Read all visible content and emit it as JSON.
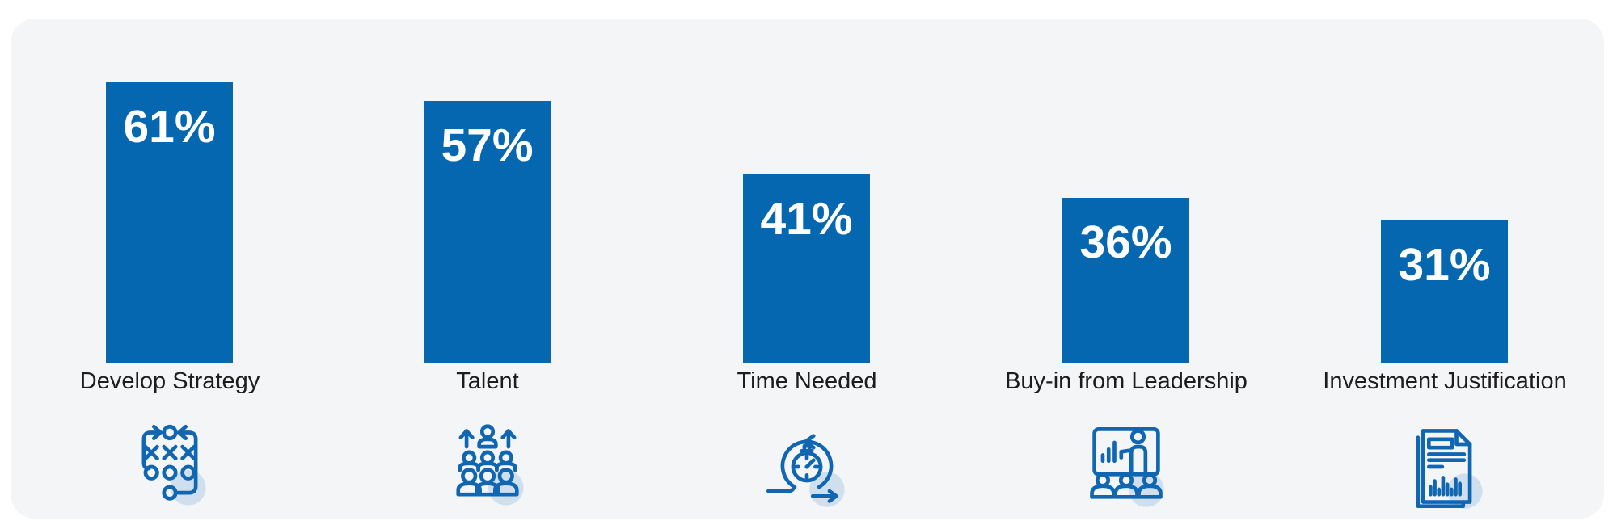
{
  "chart_data": {
    "type": "bar",
    "categories": [
      "Develop Strategy",
      "Talent",
      "Time Needed",
      "Buy-in from Leadership",
      "Investment Justification"
    ],
    "values": [
      61,
      57,
      41,
      36,
      31
    ],
    "value_labels": [
      "61%",
      "57%",
      "41%",
      "36%",
      "31%"
    ],
    "title": "",
    "xlabel": "",
    "ylabel": "",
    "ylim": [
      0,
      100
    ],
    "grid": false,
    "legend": null,
    "value_label_position": "inside-top",
    "icons": [
      "strategy-xo-playbook-icon",
      "talent-people-growth-icon",
      "agile-stopwatch-time-icon",
      "leadership-presentation-icon",
      "investment-report-document-icon"
    ]
  },
  "colors": {
    "bar": "#0667b1",
    "icon_stroke": "#1166b2",
    "icon_halo": "#cfdfee",
    "card_bg": "#f4f5f7",
    "page_bg": "#ffffff",
    "label_text": "#1d1d1f",
    "value_text": "#ffffff"
  }
}
